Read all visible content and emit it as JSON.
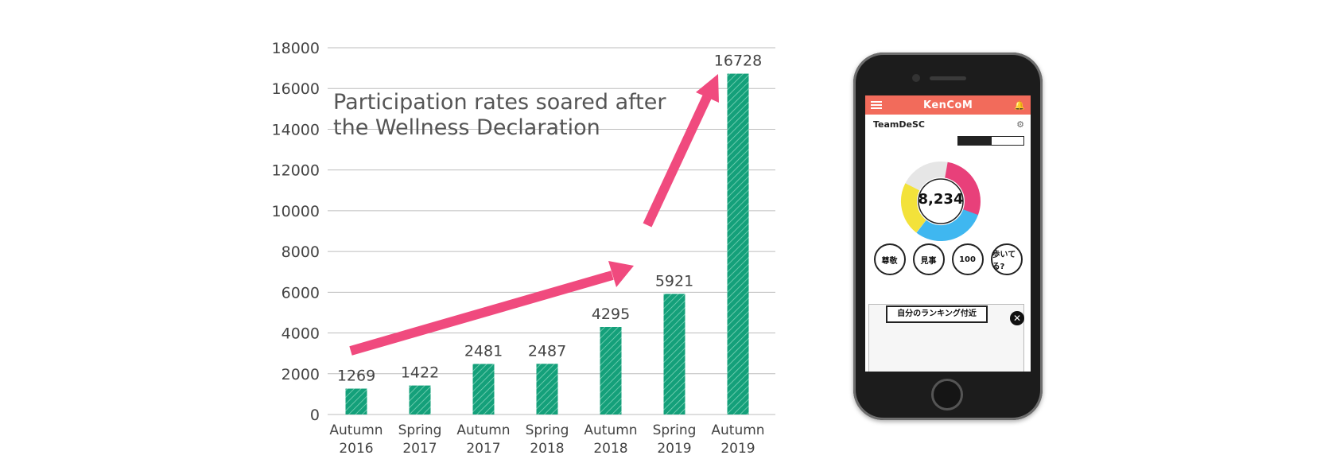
{
  "chart_data": {
    "type": "bar",
    "categories": [
      [
        "Autumn",
        "2016"
      ],
      [
        "Spring",
        "2017"
      ],
      [
        "Autumn",
        "2017"
      ],
      [
        "Spring",
        "2018"
      ],
      [
        "Autumn",
        "2018"
      ],
      [
        "Spring",
        "2019"
      ],
      [
        "Autumn",
        "2019"
      ]
    ],
    "values": [
      1269,
      1422,
      2481,
      2487,
      4295,
      5921,
      16728
    ],
    "value_labels": [
      "1269",
      "1422",
      "2481",
      "2487",
      "4295",
      "5921",
      "16728"
    ],
    "yticks": [
      "0",
      "2000",
      "4000",
      "6000",
      "8000",
      "10000",
      "12000",
      "14000",
      "16000",
      "18000"
    ],
    "ylim": [
      0,
      18000
    ],
    "grid": true,
    "annotation": [
      "Participation rates soared after",
      "the Wellness Declaration"
    ],
    "colors": {
      "bar": "#14a07a",
      "arrow": "#f04a7e",
      "grid": "#bdbdbd"
    }
  },
  "phone_screen": {
    "app_name": "KenCoM",
    "team_name": "TeamDeSC",
    "center_value": "8,234",
    "stamps": [
      "尊敬",
      "見事",
      "100",
      "歩いてる?"
    ],
    "banner": "自分のランキング付近"
  }
}
